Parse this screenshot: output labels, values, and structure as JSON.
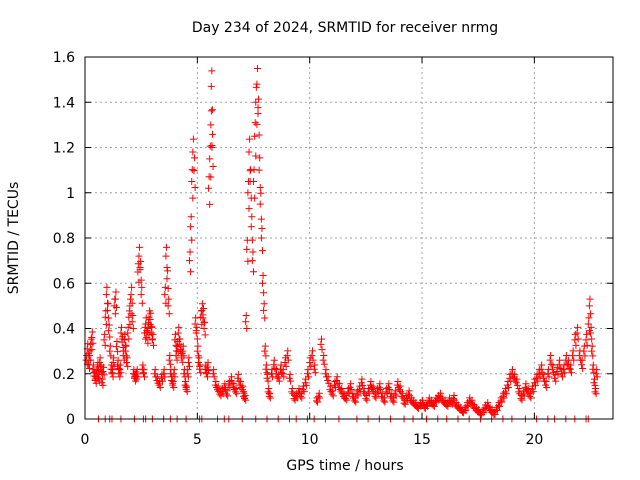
{
  "chart_data": {
    "type": "scatter",
    "title": "Day 234 of 2024, SRMTID for receiver nrmg",
    "xlabel": "GPS time / hours",
    "ylabel": "SRMTID / TECUs",
    "xlim": [
      0,
      23.5
    ],
    "ylim": [
      0,
      1.6
    ],
    "xticks": [
      0,
      5,
      10,
      15,
      20
    ],
    "xtick_labels": [
      "0",
      "5",
      "10",
      "15",
      "20"
    ],
    "yticks": [
      0,
      0.2,
      0.4,
      0.6,
      0.8,
      1.0,
      1.2,
      1.4,
      1.6
    ],
    "ytick_labels": [
      "0",
      "0.2",
      "0.4",
      "0.6",
      "0.8",
      "1",
      "1.2",
      "1.4",
      "1.6"
    ],
    "grid": true,
    "marker": "+",
    "color": "#ff0000",
    "series": [
      {
        "name": "SRMTID",
        "points": [
          [
            0.05,
            0.26
          ],
          [
            0.1,
            0.31
          ],
          [
            0.15,
            0.24
          ],
          [
            0.2,
            0.28
          ],
          [
            0.25,
            0.33
          ],
          [
            0.3,
            0.36
          ],
          [
            0.35,
            0.22
          ],
          [
            0.4,
            0.19
          ],
          [
            0.45,
            0.17
          ],
          [
            0.5,
            0.2
          ],
          [
            0.55,
            0.23
          ],
          [
            0.6,
            0.18
          ],
          [
            0.65,
            0.25
          ],
          [
            0.7,
            0.22
          ],
          [
            0.75,
            0.16
          ],
          [
            0.8,
            0.21
          ],
          [
            0.85,
            0.35
          ],
          [
            0.9,
            0.45
          ],
          [
            0.95,
            0.55
          ],
          [
            1.0,
            0.48
          ],
          [
            1.05,
            0.39
          ],
          [
            1.1,
            0.3
          ],
          [
            1.15,
            0.22
          ],
          [
            1.2,
            0.2
          ],
          [
            1.25,
            0.25
          ],
          [
            1.3,
            0.5
          ],
          [
            1.35,
            0.53
          ],
          [
            1.4,
            0.32
          ],
          [
            1.45,
            0.24
          ],
          [
            1.5,
            0.2
          ],
          [
            1.55,
            0.22
          ],
          [
            1.6,
            0.38
          ],
          [
            1.65,
            0.34
          ],
          [
            1.7,
            0.28
          ],
          [
            1.75,
            0.35
          ],
          [
            1.8,
            0.3
          ],
          [
            1.85,
            0.25
          ],
          [
            1.9,
            0.38
          ],
          [
            1.95,
            0.45
          ],
          [
            2.0,
            0.5
          ],
          [
            2.05,
            0.55
          ],
          [
            2.1,
            0.43
          ],
          [
            2.15,
            0.2
          ],
          [
            2.2,
            0.18
          ],
          [
            2.25,
            0.19
          ],
          [
            2.3,
            0.2
          ],
          [
            2.35,
            0.65
          ],
          [
            2.4,
            0.72
          ],
          [
            2.45,
            0.66
          ],
          [
            2.5,
            0.55
          ],
          [
            2.55,
            0.22
          ],
          [
            2.6,
            0.2
          ],
          [
            2.65,
            0.38
          ],
          [
            2.7,
            0.42
          ],
          [
            2.75,
            0.36
          ],
          [
            2.8,
            0.4
          ],
          [
            2.85,
            0.45
          ],
          [
            2.9,
            0.44
          ],
          [
            2.95,
            0.38
          ],
          [
            3.0,
            0.35
          ],
          [
            3.1,
            0.2
          ],
          [
            3.2,
            0.17
          ],
          [
            3.3,
            0.15
          ],
          [
            3.4,
            0.18
          ],
          [
            3.5,
            0.2
          ],
          [
            3.55,
            0.55
          ],
          [
            3.6,
            0.72
          ],
          [
            3.65,
            0.62
          ],
          [
            3.7,
            0.5
          ],
          [
            3.75,
            0.26
          ],
          [
            3.8,
            0.2
          ],
          [
            3.85,
            0.17
          ],
          [
            3.9,
            0.15
          ],
          [
            3.95,
            0.2
          ],
          [
            4.0,
            0.35
          ],
          [
            4.05,
            0.28
          ],
          [
            4.1,
            0.32
          ],
          [
            4.15,
            0.38
          ],
          [
            4.2,
            0.33
          ],
          [
            4.25,
            0.3
          ],
          [
            4.3,
            0.27
          ],
          [
            4.35,
            0.3
          ],
          [
            4.4,
            0.2
          ],
          [
            4.45,
            0.15
          ],
          [
            4.5,
            0.13
          ],
          [
            4.55,
            0.2
          ],
          [
            4.6,
            0.25
          ],
          [
            4.65,
            0.7
          ],
          [
            4.7,
            0.85
          ],
          [
            4.75,
            1.05
          ],
          [
            4.8,
            1.18
          ],
          [
            4.85,
            1.1
          ],
          [
            4.9,
            0.42
          ],
          [
            4.95,
            0.38
          ],
          [
            5.0,
            0.3
          ],
          [
            5.05,
            0.25
          ],
          [
            5.1,
            0.22
          ],
          [
            5.15,
            0.45
          ],
          [
            5.2,
            0.48
          ],
          [
            5.25,
            0.46
          ],
          [
            5.3,
            0.4
          ],
          [
            5.35,
            0.22
          ],
          [
            5.4,
            0.2
          ],
          [
            5.45,
            0.23
          ],
          [
            5.5,
            1.02
          ],
          [
            5.55,
            1.15
          ],
          [
            5.6,
            1.3
          ],
          [
            5.62,
            1.47
          ],
          [
            5.65,
            1.2
          ],
          [
            5.7,
            0.2
          ],
          [
            5.8,
            0.15
          ],
          [
            5.9,
            0.13
          ],
          [
            6.0,
            0.11
          ],
          [
            6.1,
            0.12
          ],
          [
            6.2,
            0.14
          ],
          [
            6.3,
            0.11
          ],
          [
            6.4,
            0.15
          ],
          [
            6.5,
            0.17
          ],
          [
            6.6,
            0.14
          ],
          [
            6.7,
            0.12
          ],
          [
            6.8,
            0.18
          ],
          [
            6.9,
            0.15
          ],
          [
            7.0,
            0.13
          ],
          [
            7.05,
            0.1
          ],
          [
            7.1,
            0.09
          ],
          [
            7.15,
            0.43
          ],
          [
            7.2,
            0.75
          ],
          [
            7.25,
            1.0
          ],
          [
            7.3,
            1.18
          ],
          [
            7.35,
            1.05
          ],
          [
            7.4,
            0.85
          ],
          [
            7.45,
            0.7
          ],
          [
            7.5,
            1.05
          ],
          [
            7.55,
            1.25
          ],
          [
            7.6,
            1.4
          ],
          [
            7.65,
            1.48
          ],
          [
            7.7,
            1.35
          ],
          [
            7.75,
            1.1
          ],
          [
            7.8,
            0.95
          ],
          [
            7.85,
            0.8
          ],
          [
            7.9,
            0.6
          ],
          [
            7.95,
            0.48
          ],
          [
            8.0,
            0.3
          ],
          [
            8.05,
            0.22
          ],
          [
            8.1,
            0.18
          ],
          [
            8.15,
            0.12
          ],
          [
            8.2,
            0.1
          ],
          [
            8.3,
            0.2
          ],
          [
            8.4,
            0.24
          ],
          [
            8.5,
            0.2
          ],
          [
            8.6,
            0.18
          ],
          [
            8.7,
            0.22
          ],
          [
            8.8,
            0.2
          ],
          [
            8.9,
            0.25
          ],
          [
            9.0,
            0.28
          ],
          [
            9.1,
            0.18
          ],
          [
            9.2,
            0.12
          ],
          [
            9.3,
            0.09
          ],
          [
            9.4,
            0.1
          ],
          [
            9.5,
            0.12
          ],
          [
            9.6,
            0.1
          ],
          [
            9.7,
            0.13
          ],
          [
            9.8,
            0.16
          ],
          [
            9.9,
            0.2
          ],
          [
            10.0,
            0.25
          ],
          [
            10.1,
            0.28
          ],
          [
            10.2,
            0.22
          ],
          [
            10.3,
            0.08
          ],
          [
            10.4,
            0.1
          ],
          [
            10.5,
            0.33
          ],
          [
            10.6,
            0.26
          ],
          [
            10.7,
            0.2
          ],
          [
            10.8,
            0.17
          ],
          [
            10.9,
            0.13
          ],
          [
            11.0,
            0.11
          ],
          [
            11.1,
            0.15
          ],
          [
            11.2,
            0.17
          ],
          [
            11.3,
            0.14
          ],
          [
            11.4,
            0.12
          ],
          [
            11.5,
            0.1
          ],
          [
            11.6,
            0.09
          ],
          [
            11.7,
            0.12
          ],
          [
            11.8,
            0.14
          ],
          [
            11.9,
            0.1
          ],
          [
            12.0,
            0.08
          ],
          [
            12.1,
            0.11
          ],
          [
            12.2,
            0.13
          ],
          [
            12.3,
            0.16
          ],
          [
            12.4,
            0.12
          ],
          [
            12.5,
            0.09
          ],
          [
            12.6,
            0.12
          ],
          [
            12.7,
            0.15
          ],
          [
            12.8,
            0.13
          ],
          [
            12.9,
            0.1
          ],
          [
            13.0,
            0.12
          ],
          [
            13.1,
            0.14
          ],
          [
            13.2,
            0.1
          ],
          [
            13.3,
            0.08
          ],
          [
            13.4,
            0.12
          ],
          [
            13.5,
            0.14
          ],
          [
            13.6,
            0.1
          ],
          [
            13.7,
            0.08
          ],
          [
            13.8,
            0.11
          ],
          [
            13.9,
            0.15
          ],
          [
            14.0,
            0.13
          ],
          [
            14.1,
            0.1
          ],
          [
            14.2,
            0.07
          ],
          [
            14.3,
            0.09
          ],
          [
            14.4,
            0.11
          ],
          [
            14.5,
            0.08
          ],
          [
            14.6,
            0.07
          ],
          [
            14.7,
            0.06
          ],
          [
            14.8,
            0.05
          ],
          [
            14.9,
            0.06
          ],
          [
            15.0,
            0.07
          ],
          [
            15.1,
            0.05
          ],
          [
            15.2,
            0.06
          ],
          [
            15.3,
            0.08
          ],
          [
            15.4,
            0.07
          ],
          [
            15.5,
            0.06
          ],
          [
            15.6,
            0.08
          ],
          [
            15.7,
            0.09
          ],
          [
            15.8,
            0.1
          ],
          [
            15.9,
            0.08
          ],
          [
            16.0,
            0.07
          ],
          [
            16.1,
            0.06
          ],
          [
            16.2,
            0.08
          ],
          [
            16.3,
            0.07
          ],
          [
            16.4,
            0.09
          ],
          [
            16.5,
            0.06
          ],
          [
            16.6,
            0.05
          ],
          [
            16.7,
            0.04
          ],
          [
            16.8,
            0.03
          ],
          [
            16.9,
            0.04
          ],
          [
            17.0,
            0.06
          ],
          [
            17.1,
            0.08
          ],
          [
            17.2,
            0.07
          ],
          [
            17.3,
            0.05
          ],
          [
            17.4,
            0.04
          ],
          [
            17.5,
            0.03
          ],
          [
            17.6,
            0.02
          ],
          [
            17.7,
            0.03
          ],
          [
            17.8,
            0.05
          ],
          [
            17.9,
            0.06
          ],
          [
            18.0,
            0.04
          ],
          [
            18.1,
            0.03
          ],
          [
            18.2,
            0.02
          ],
          [
            18.3,
            0.04
          ],
          [
            18.4,
            0.06
          ],
          [
            18.5,
            0.08
          ],
          [
            18.6,
            0.1
          ],
          [
            18.7,
            0.12
          ],
          [
            18.8,
            0.15
          ],
          [
            18.9,
            0.18
          ],
          [
            19.0,
            0.2
          ],
          [
            19.1,
            0.18
          ],
          [
            19.2,
            0.16
          ],
          [
            19.3,
            0.12
          ],
          [
            19.4,
            0.09
          ],
          [
            19.5,
            0.11
          ],
          [
            19.6,
            0.14
          ],
          [
            19.7,
            0.12
          ],
          [
            19.8,
            0.1
          ],
          [
            19.9,
            0.13
          ],
          [
            20.0,
            0.16
          ],
          [
            20.1,
            0.18
          ],
          [
            20.2,
            0.2
          ],
          [
            20.3,
            0.22
          ],
          [
            20.4,
            0.18
          ],
          [
            20.5,
            0.15
          ],
          [
            20.6,
            0.2
          ],
          [
            20.7,
            0.26
          ],
          [
            20.8,
            0.22
          ],
          [
            20.9,
            0.18
          ],
          [
            21.0,
            0.21
          ],
          [
            21.1,
            0.24
          ],
          [
            21.2,
            0.2
          ],
          [
            21.3,
            0.22
          ],
          [
            21.4,
            0.26
          ],
          [
            21.5,
            0.24
          ],
          [
            21.6,
            0.22
          ],
          [
            21.7,
            0.28
          ],
          [
            21.8,
            0.35
          ],
          [
            21.9,
            0.38
          ],
          [
            22.0,
            0.28
          ],
          [
            22.1,
            0.24
          ],
          [
            22.2,
            0.3
          ],
          [
            22.3,
            0.35
          ],
          [
            22.4,
            0.42
          ],
          [
            22.45,
            0.5
          ],
          [
            22.5,
            0.38
          ],
          [
            22.55,
            0.3
          ],
          [
            22.6,
            0.22
          ],
          [
            22.65,
            0.16
          ],
          [
            22.7,
            0.12
          ],
          [
            22.75,
            0.2
          ]
        ],
        "zero_points": [
          0.6,
          0.9,
          1.1,
          1.2,
          1.6,
          2.2,
          2.6,
          2.7,
          3.0,
          3.5,
          3.8,
          4.1,
          4.5,
          5.1,
          5.2,
          5.9,
          6.2,
          6.4,
          7.0,
          7.6,
          8.1,
          8.6,
          9.1,
          9.4,
          9.9,
          10.2,
          10.7,
          11.3,
          12.1,
          12.6,
          13.1,
          13.6,
          14.2,
          14.6,
          15.2,
          15.7,
          16.1,
          16.6,
          17.1,
          17.6,
          18.1,
          18.6,
          19.0,
          19.6,
          20.1,
          20.6,
          20.9,
          21.4,
          21.8,
          22.3,
          22.4
        ]
      }
    ]
  }
}
